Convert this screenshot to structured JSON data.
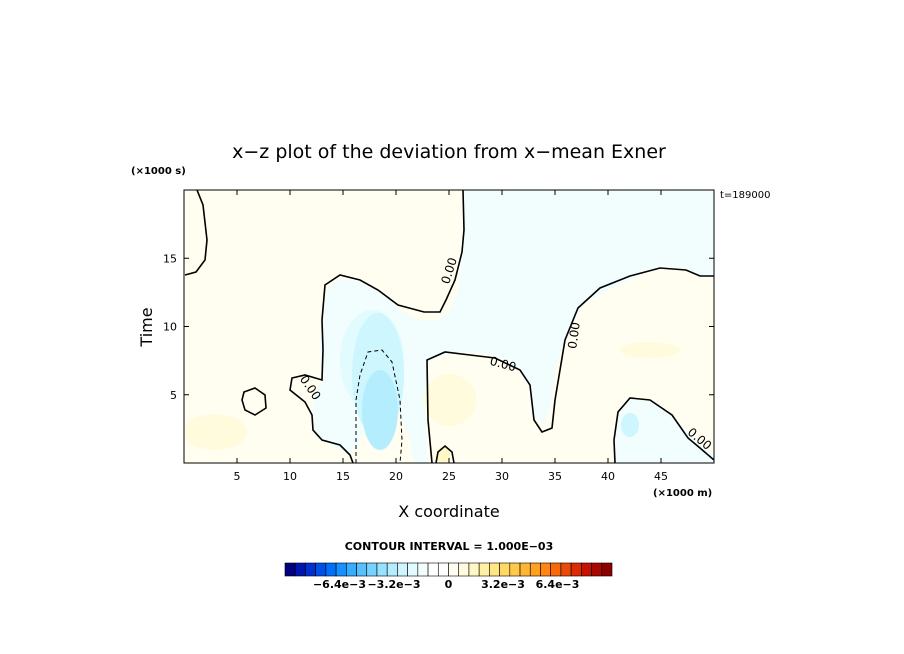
{
  "chart_data": {
    "type": "heatmap",
    "title": "x−z plot of the deviation from x−mean Exner",
    "xlabel": "X coordinate",
    "ylabel": "Time",
    "x_unit": "(×1000 m)",
    "y_unit": "(×1000 s)",
    "time_stamp": "t=189000",
    "x_ticks": [
      5,
      10,
      15,
      20,
      25,
      30,
      35,
      40,
      45
    ],
    "y_ticks": [
      5,
      10,
      15
    ],
    "xlim": [
      0,
      50
    ],
    "ylim": [
      0,
      20
    ],
    "contour_interval_text": "CONTOUR INTERVAL = 1.000E−03",
    "contour_label": "0.00",
    "colorbar": {
      "ticks": [
        "−6.4e−3",
        "−3.2e−3",
        "0",
        "3.2e−3",
        "6.4e−3"
      ],
      "tick_values": [
        -0.0064,
        -0.0032,
        0,
        0.0032,
        0.0064
      ],
      "vmin": -0.0096,
      "vmax": 0.0096,
      "colors": [
        "#000080",
        "#0015b0",
        "#0030d0",
        "#0050e8",
        "#0070f8",
        "#1890ff",
        "#38acff",
        "#58c0ff",
        "#78d2ff",
        "#96e2ff",
        "#b4eefe",
        "#cdf6fe",
        "#e2fbfe",
        "#f2fefe",
        "#ffffff",
        "#ffffff",
        "#fffef0",
        "#fffbdc",
        "#fff7c4",
        "#fff0a4",
        "#ffe684",
        "#ffd866",
        "#ffc84a",
        "#ffb634",
        "#ffa020",
        "#ff8614",
        "#f8680c",
        "#ec4808",
        "#dc2c04",
        "#c41400",
        "#a80800",
        "#8c0000"
      ]
    }
  }
}
